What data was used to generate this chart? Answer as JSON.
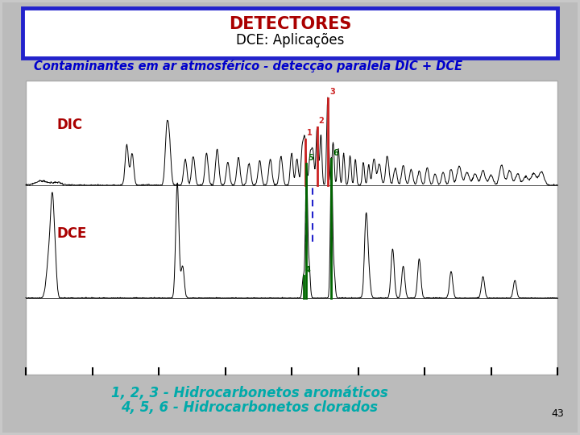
{
  "title_main": "DETECTORES",
  "title_sub": "DCE: Aplicações",
  "subtitle": "Contaminantes em ar atmosférico - detecção paralela DIC + DCE",
  "label_dic": "DIC",
  "label_dce": "DCE",
  "footer_line1": "1, 2, 3 - Hidrocarbonetos aromáticos",
  "footer_line2": "4, 5, 6 - Hidrocarbonetos clorados",
  "page_num": "43",
  "bg_color": "#c8c8c8",
  "title_box_bg": "#ffffff",
  "title_box_border": "#2222cc",
  "title_main_color": "#aa0000",
  "subtitle_color": "#0000cc",
  "label_dic_color": "#aa0000",
  "label_dce_color": "#aa0000",
  "footer_color": "#00aaaa",
  "dashed_line1_color": "#2222cc",
  "dashed_line2_color": "#555555",
  "peak_red_color": "#cc2222",
  "peak_green_color": "#006600"
}
